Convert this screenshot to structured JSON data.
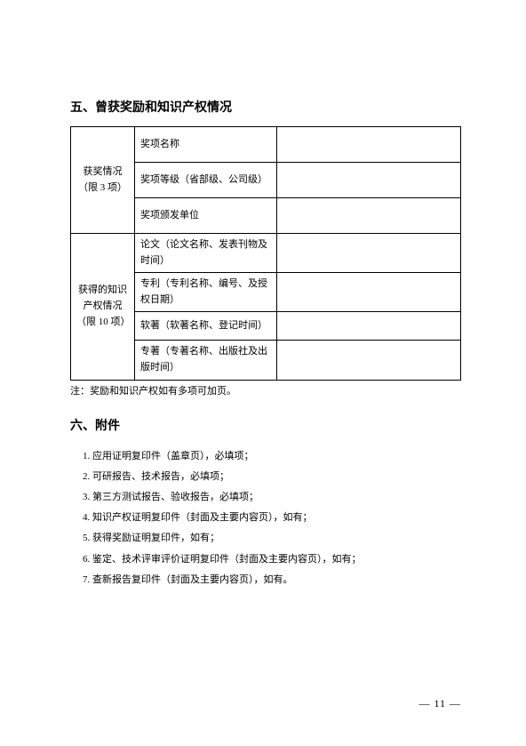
{
  "section5": {
    "title": "五、曾获奖励和知识产权情况",
    "table": {
      "group1": {
        "label_line1": "获奖情况",
        "label_line2": "（限 3 项）",
        "rows": [
          {
            "label": "奖项名称",
            "value": ""
          },
          {
            "label": "奖项等级（省部级、公司级）",
            "value": ""
          },
          {
            "label": "奖项颁发单位",
            "value": ""
          }
        ]
      },
      "group2": {
        "label_line1": "获得的知识",
        "label_line2": "产权情况",
        "label_line3": "（限 10 项）",
        "rows": [
          {
            "label": "论文（论文名称、发表刊物及时间）",
            "value": ""
          },
          {
            "label": "专利（专利名称、编号、及授权日期）",
            "value": ""
          },
          {
            "label": "软著（软著名称、登记时间）",
            "value": ""
          },
          {
            "label": "专著（专著名称、出版社及出版时间）",
            "value": ""
          }
        ]
      }
    },
    "note": "注：奖励和知识产权如有多项可加页。"
  },
  "section6": {
    "title": "六、附件",
    "items": [
      "1. 应用证明复印件（盖章页），必填项；",
      "2. 可研报告、技术报告，必填项；",
      "3. 第三方测试报告、验收报告，必填项；",
      "4. 知识产权证明复印件（封面及主要内容页），如有；",
      "5. 获得奖励证明复印件，如有；",
      "6. 鉴定、技术评审评价证明复印件（封面及主要内容页），如有；",
      "7. 查新报告复印件（封面及主要内容页），如有。"
    ]
  },
  "pageNumber": "— 11 —"
}
